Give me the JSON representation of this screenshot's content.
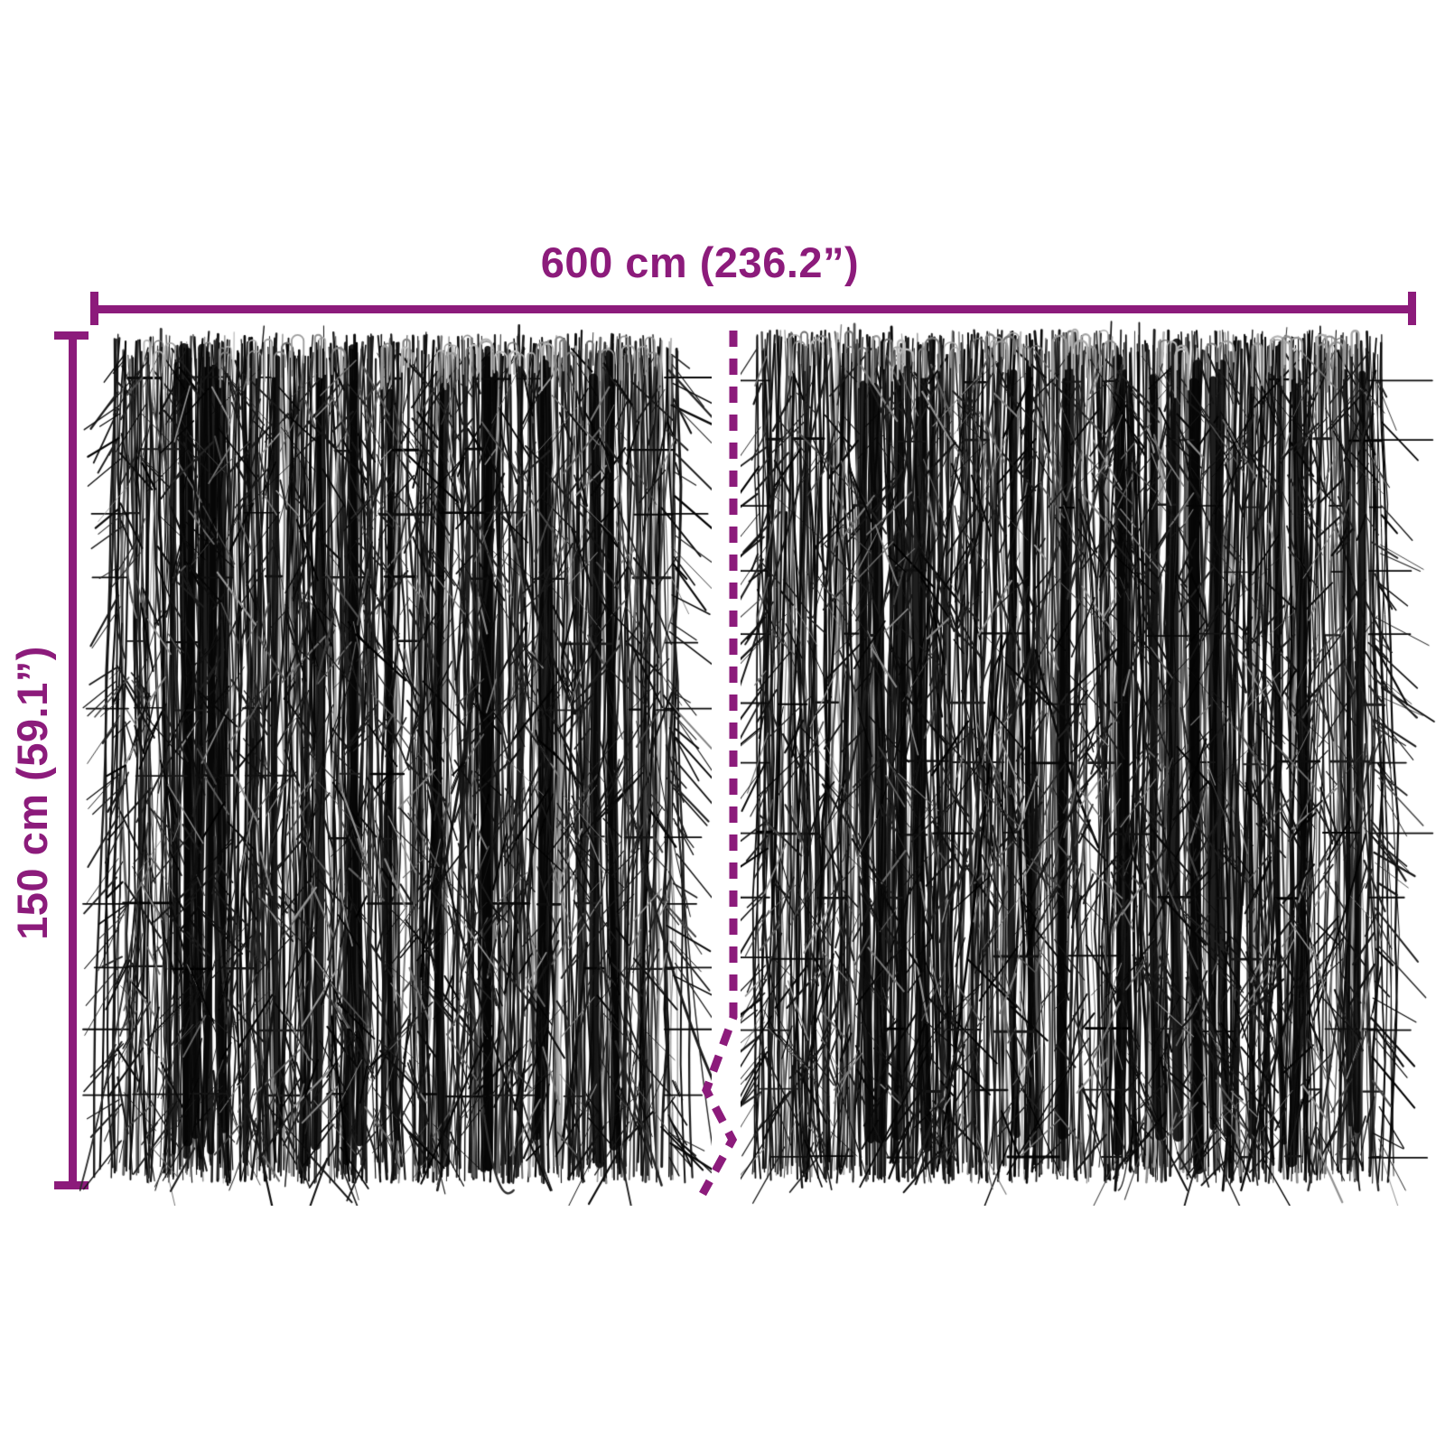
{
  "diagram": {
    "background_color": "#ffffff",
    "accent_color": "#8c1b7b",
    "twig_color": "#0a0a0a",
    "dimensions": {
      "width_label": "600 cm (236.2”)",
      "height_label": "150 cm (59.1”)"
    }
  }
}
